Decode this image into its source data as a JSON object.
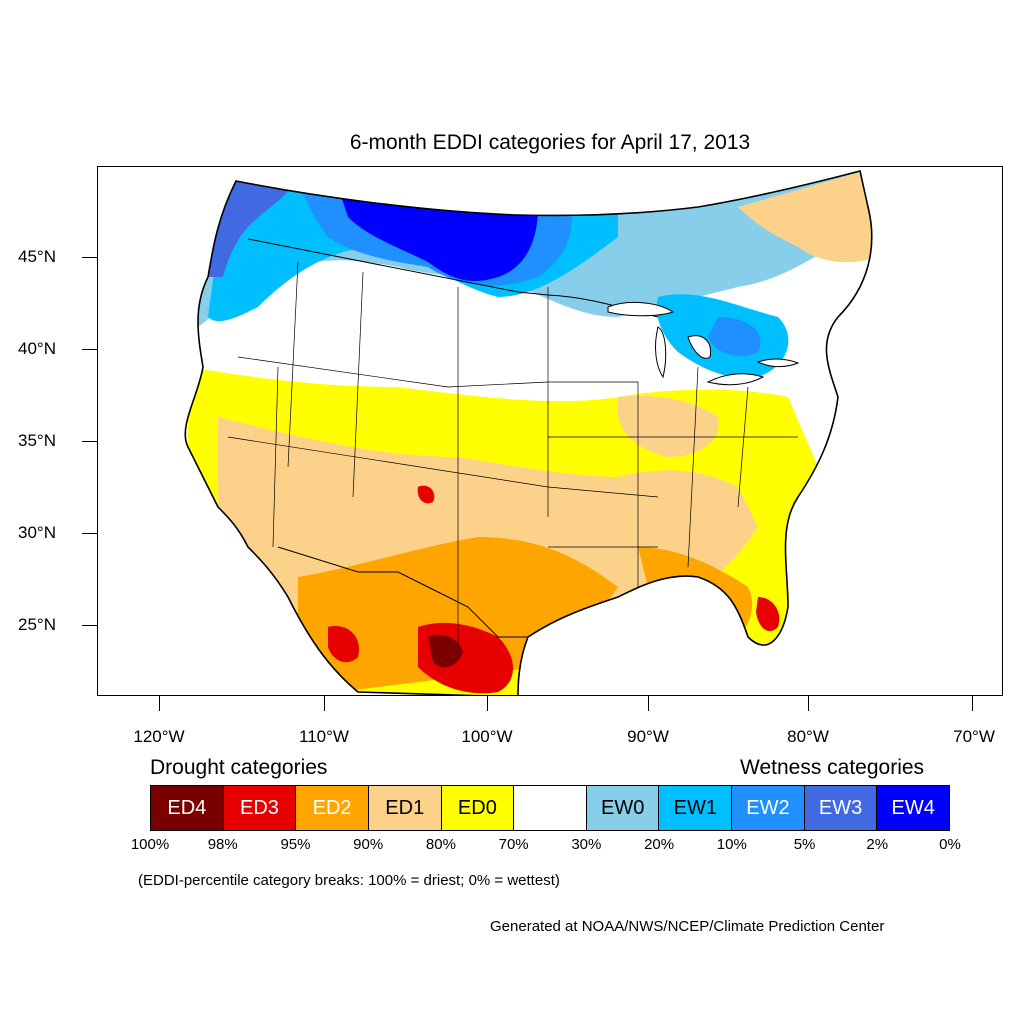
{
  "title": "6-month EDDI categories for April 17, 2013",
  "axes": {
    "lat_labels": [
      "45°N",
      "40°N",
      "35°N",
      "30°N",
      "25°N"
    ],
    "lon_labels": [
      "120°W",
      "110°W",
      "100°W",
      "90°W",
      "80°W",
      "70°W"
    ]
  },
  "legend": {
    "drought_heading": "Drought categories",
    "wetness_heading": "Wetness categories",
    "categories": [
      {
        "label": "ED4",
        "color": "#7a0000",
        "text_color": "#ffffff"
      },
      {
        "label": "ED3",
        "color": "#e60000",
        "text_color": "#ffffff"
      },
      {
        "label": "ED2",
        "color": "#ffa500",
        "text_color": "#ffffff"
      },
      {
        "label": "ED1",
        "color": "#fcd28a",
        "text_color": "#000000"
      },
      {
        "label": "ED0",
        "color": "#ffff00",
        "text_color": "#000000"
      },
      {
        "label": "",
        "color": "#ffffff",
        "text_color": "#000000"
      },
      {
        "label": "EW0",
        "color": "#87ceeb",
        "text_color": "#000000"
      },
      {
        "label": "EW1",
        "color": "#00bfff",
        "text_color": "#000000"
      },
      {
        "label": "EW2",
        "color": "#1e90ff",
        "text_color": "#ffffff"
      },
      {
        "label": "EW3",
        "color": "#4169e1",
        "text_color": "#ffffff"
      },
      {
        "label": "EW4",
        "color": "#0000ff",
        "text_color": "#ffffff"
      }
    ],
    "percent_breaks": [
      "100%",
      "98%",
      "95%",
      "90%",
      "80%",
      "70%",
      "30%",
      "20%",
      "10%",
      "5%",
      "2%",
      "0%"
    ]
  },
  "note": "(EDDI-percentile category breaks: 100% = driest; 0% = wettest)",
  "credit": "Generated at NOAA/NWS/NCEP/Climate Prediction Center"
}
